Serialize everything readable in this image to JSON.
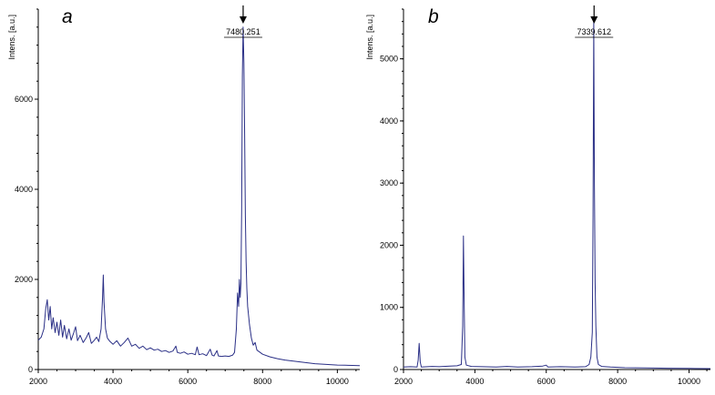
{
  "chart_data": [
    {
      "type": "line",
      "panel_label": "a",
      "ylabel": "Intens. [a.u.]",
      "xlabel": "",
      "xlim": [
        2000,
        10600
      ],
      "ylim": [
        0,
        8000
      ],
      "x_ticks": [
        "2000",
        "4000",
        "6000",
        "8000",
        "10000"
      ],
      "y_ticks": [
        "0",
        "2000",
        "4000",
        "6000"
      ],
      "peak_annotation": {
        "label": "7480.251",
        "x": 7480.251
      },
      "series": [
        {
          "color": "#2a2f86",
          "points": [
            [
              2000,
              650
            ],
            [
              2080,
              720
            ],
            [
              2150,
              900
            ],
            [
              2200,
              1350
            ],
            [
              2240,
              1550
            ],
            [
              2280,
              1100
            ],
            [
              2320,
              1400
            ],
            [
              2360,
              900
            ],
            [
              2400,
              1150
            ],
            [
              2450,
              820
            ],
            [
              2500,
              1050
            ],
            [
              2550,
              760
            ],
            [
              2600,
              1100
            ],
            [
              2650,
              720
            ],
            [
              2700,
              980
            ],
            [
              2760,
              680
            ],
            [
              2820,
              900
            ],
            [
              2880,
              650
            ],
            [
              2950,
              820
            ],
            [
              3000,
              950
            ],
            [
              3050,
              640
            ],
            [
              3120,
              760
            ],
            [
              3200,
              600
            ],
            [
              3280,
              700
            ],
            [
              3350,
              820
            ],
            [
              3420,
              580
            ],
            [
              3500,
              650
            ],
            [
              3560,
              720
            ],
            [
              3620,
              620
            ],
            [
              3680,
              900
            ],
            [
              3720,
              1600
            ],
            [
              3740,
              2100
            ],
            [
              3760,
              1500
            ],
            [
              3800,
              900
            ],
            [
              3850,
              700
            ],
            [
              3920,
              620
            ],
            [
              4000,
              560
            ],
            [
              4100,
              640
            ],
            [
              4200,
              520
            ],
            [
              4300,
              600
            ],
            [
              4400,
              700
            ],
            [
              4500,
              520
            ],
            [
              4600,
              560
            ],
            [
              4700,
              470
            ],
            [
              4800,
              520
            ],
            [
              4900,
              440
            ],
            [
              5000,
              480
            ],
            [
              5100,
              430
            ],
            [
              5200,
              450
            ],
            [
              5300,
              400
            ],
            [
              5400,
              420
            ],
            [
              5500,
              380
            ],
            [
              5600,
              410
            ],
            [
              5680,
              520
            ],
            [
              5720,
              380
            ],
            [
              5800,
              360
            ],
            [
              5900,
              390
            ],
            [
              6000,
              340
            ],
            [
              6100,
              360
            ],
            [
              6200,
              330
            ],
            [
              6250,
              500
            ],
            [
              6300,
              330
            ],
            [
              6400,
              350
            ],
            [
              6500,
              310
            ],
            [
              6600,
              450
            ],
            [
              6650,
              320
            ],
            [
              6700,
              300
            ],
            [
              6780,
              420
            ],
            [
              6820,
              300
            ],
            [
              6900,
              290
            ],
            [
              7000,
              300
            ],
            [
              7100,
              290
            ],
            [
              7200,
              320
            ],
            [
              7250,
              380
            ],
            [
              7300,
              900
            ],
            [
              7330,
              1700
            ],
            [
              7360,
              1400
            ],
            [
              7380,
              2000
            ],
            [
              7400,
              1600
            ],
            [
              7420,
              1900
            ],
            [
              7440,
              3500
            ],
            [
              7460,
              6500
            ],
            [
              7480,
              7600
            ],
            [
              7500,
              6800
            ],
            [
              7520,
              5200
            ],
            [
              7540,
              3400
            ],
            [
              7560,
              2400
            ],
            [
              7580,
              1800
            ],
            [
              7600,
              1400
            ],
            [
              7650,
              1000
            ],
            [
              7700,
              700
            ],
            [
              7750,
              540
            ],
            [
              7800,
              600
            ],
            [
              7850,
              430
            ],
            [
              7900,
              400
            ],
            [
              8000,
              340
            ],
            [
              8200,
              280
            ],
            [
              8400,
              240
            ],
            [
              8600,
              210
            ],
            [
              8800,
              190
            ],
            [
              9000,
              170
            ],
            [
              9200,
              150
            ],
            [
              9400,
              130
            ],
            [
              9600,
              120
            ],
            [
              9800,
              110
            ],
            [
              10000,
              100
            ],
            [
              10200,
              95
            ],
            [
              10400,
              90
            ],
            [
              10600,
              85
            ]
          ]
        }
      ]
    },
    {
      "type": "line",
      "panel_label": "b",
      "ylabel": "Intens. [a.u.]",
      "xlabel": "",
      "xlim": [
        2000,
        10600
      ],
      "ylim": [
        0,
        5800
      ],
      "x_ticks": [
        "2000",
        "4000",
        "6000",
        "8000",
        "10000"
      ],
      "y_ticks": [
        "0",
        "1000",
        "2000",
        "3000",
        "4000",
        "5000"
      ],
      "peak_annotation": {
        "label": "7339.612",
        "x": 7339.612
      },
      "series": [
        {
          "color": "#2a2f86",
          "points": [
            [
              2000,
              40
            ],
            [
              2200,
              45
            ],
            [
              2380,
              40
            ],
            [
              2410,
              150
            ],
            [
              2440,
              420
            ],
            [
              2470,
              120
            ],
            [
              2500,
              40
            ],
            [
              2800,
              50
            ],
            [
              3000,
              45
            ],
            [
              3300,
              55
            ],
            [
              3500,
              60
            ],
            [
              3620,
              80
            ],
            [
              3660,
              700
            ],
            [
              3680,
              2150
            ],
            [
              3700,
              1100
            ],
            [
              3720,
              200
            ],
            [
              3760,
              70
            ],
            [
              3900,
              50
            ],
            [
              4200,
              45
            ],
            [
              4600,
              40
            ],
            [
              4900,
              50
            ],
            [
              5200,
              40
            ],
            [
              5600,
              45
            ],
            [
              5900,
              55
            ],
            [
              6000,
              70
            ],
            [
              6050,
              40
            ],
            [
              6400,
              45
            ],
            [
              6800,
              40
            ],
            [
              7100,
              45
            ],
            [
              7200,
              80
            ],
            [
              7250,
              200
            ],
            [
              7290,
              600
            ],
            [
              7310,
              2500
            ],
            [
              7330,
              5600
            ],
            [
              7350,
              3000
            ],
            [
              7370,
              1400
            ],
            [
              7390,
              700
            ],
            [
              7420,
              200
            ],
            [
              7460,
              80
            ],
            [
              7550,
              50
            ],
            [
              7800,
              40
            ],
            [
              8200,
              30
            ],
            [
              8800,
              25
            ],
            [
              9400,
              20
            ],
            [
              10000,
              18
            ],
            [
              10600,
              15
            ]
          ]
        }
      ]
    }
  ]
}
